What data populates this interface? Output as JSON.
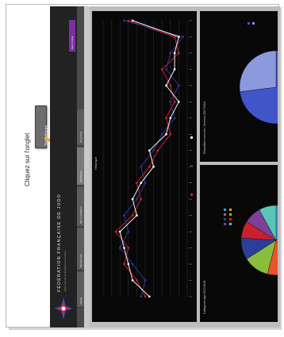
{
  "annotation": {
    "instruction": "Cliquez sur l'onglet",
    "tab_label": "Statistiques",
    "arrow_color": "#f2b01e"
  },
  "dashboard": {
    "org_title": "FÉDÉRATION FRANÇAISE DE JUDO",
    "org_subtitle": "Jujitsu, Kendo et Disciplines Associées",
    "logo_text": "FF JUDO",
    "account_button": "Mon compte",
    "nav_tabs": [
      "Accueil",
      "Mes licenciés",
      "Mes compétitions",
      "Statistiques",
      "Documents"
    ],
    "line_chart_title": "Historique",
    "pie1_title": "Répartition hommes / femmes 2017/2018",
    "pie2_title": "Catégories âge 2017/2018",
    "colors": {
      "accent": "#7b2fa3",
      "series_red": "#c8202f",
      "series_blue": "#33348f",
      "series_white": "#f2f2f2"
    }
  },
  "chart_data": [
    {
      "type": "line",
      "title": "Historique",
      "categories_count": 18,
      "series": [
        {
          "values": [
            10,
            8,
            5,
            6,
            3,
            7,
            9,
            8,
            11,
            13,
            16,
            15,
            17,
            16,
            14,
            18,
            17,
            6
          ]
        },
        {
          "values": [
            9,
            10,
            7,
            4,
            6,
            5,
            8,
            10,
            9,
            12,
            14,
            17,
            16,
            18,
            15,
            16,
            19,
            5
          ]
        },
        {
          "values": [
            11,
            7,
            6,
            5,
            4,
            8,
            7,
            9,
            12,
            11,
            15,
            16,
            18,
            15,
            17,
            17,
            18,
            7
          ]
        }
      ],
      "ylim": [
        0,
        20
      ]
    },
    {
      "type": "pie",
      "title": "Répartition hommes / femmes 2017/2018",
      "slices": [
        {
          "value": 73,
          "color": "#3f55c8"
        },
        {
          "value": 27,
          "color": "#8c99dc"
        }
      ]
    },
    {
      "type": "pie",
      "title": "Catégories âge 2017/2018",
      "slices": [
        {
          "value": 22,
          "color": "#2aa7e0"
        },
        {
          "value": 18,
          "color": "#f4a11c"
        },
        {
          "value": 14,
          "color": "#e8542f"
        },
        {
          "value": 12,
          "color": "#8bbd3c"
        },
        {
          "value": 10,
          "color": "#2c3e9b"
        },
        {
          "value": 8,
          "color": "#c8202f"
        },
        {
          "value": 8,
          "color": "#7e3f98"
        },
        {
          "value": 8,
          "color": "#5ac4b8"
        }
      ]
    }
  ]
}
